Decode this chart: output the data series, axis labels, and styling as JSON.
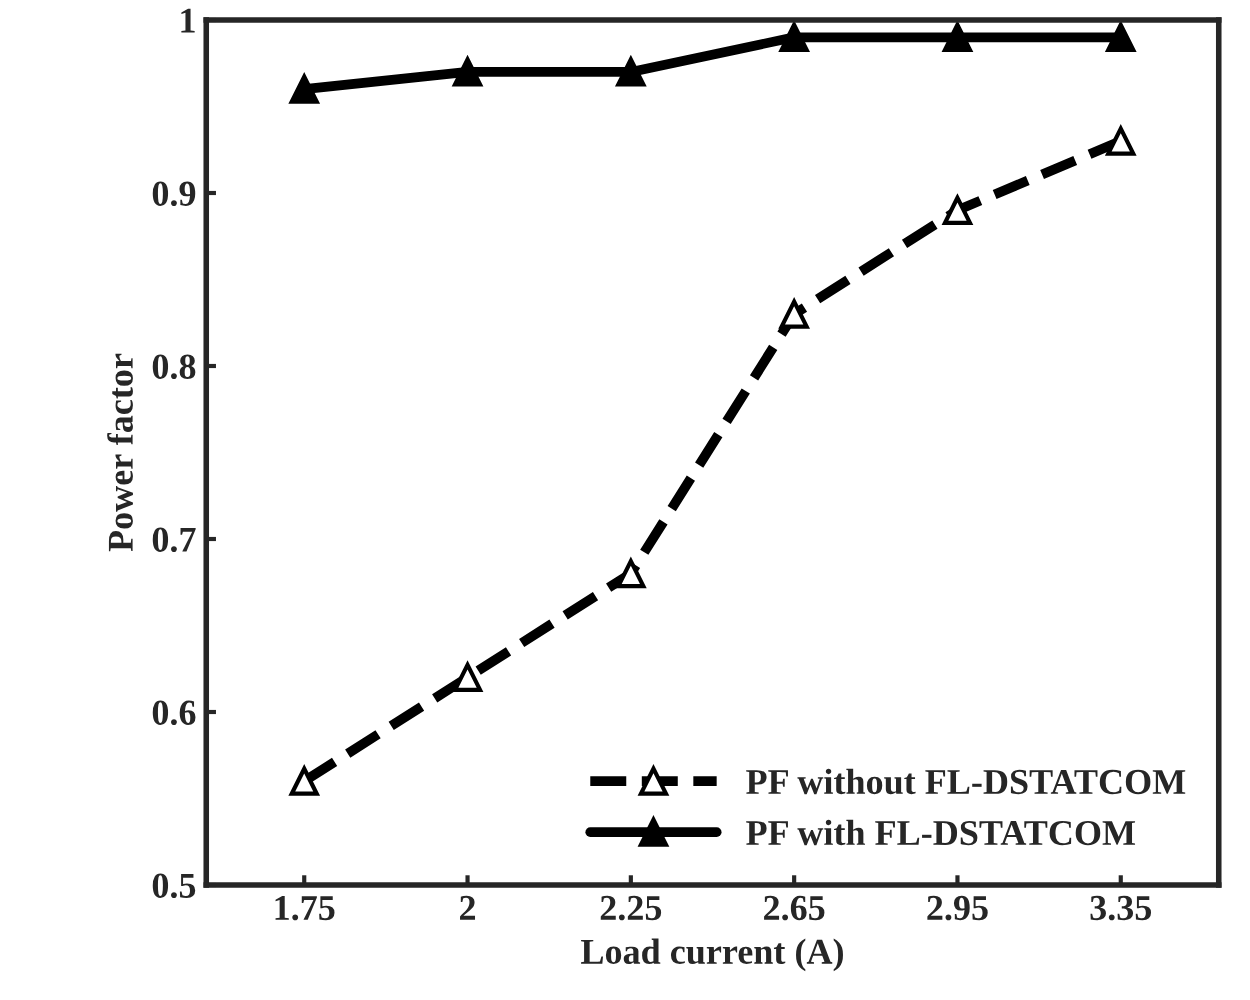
{
  "chart_data": {
    "type": "line",
    "xlabel": "Load current (A)",
    "ylabel": "Power factor",
    "categories": [
      "1.75",
      "2",
      "2.25",
      "2.65",
      "2.95",
      "3.35"
    ],
    "series": [
      {
        "name": "PF without FL-DSTATCOM",
        "color": "#000000",
        "values": [
          0.56,
          0.62,
          0.68,
          0.83,
          0.89,
          0.93
        ],
        "line_style": "dashed"
      },
      {
        "name": "PF with FL-DSTATCOM",
        "color": "#000000",
        "values": [
          0.96,
          0.97,
          0.97,
          0.99,
          0.99,
          0.99
        ],
        "line_style": "solid"
      }
    ],
    "ylim": [
      0.5,
      1
    ],
    "yticks": [
      0.5,
      0.6,
      0.7,
      0.8,
      0.9,
      1
    ],
    "marker": "triangle",
    "legend": "bottom right",
    "grid": false
  }
}
